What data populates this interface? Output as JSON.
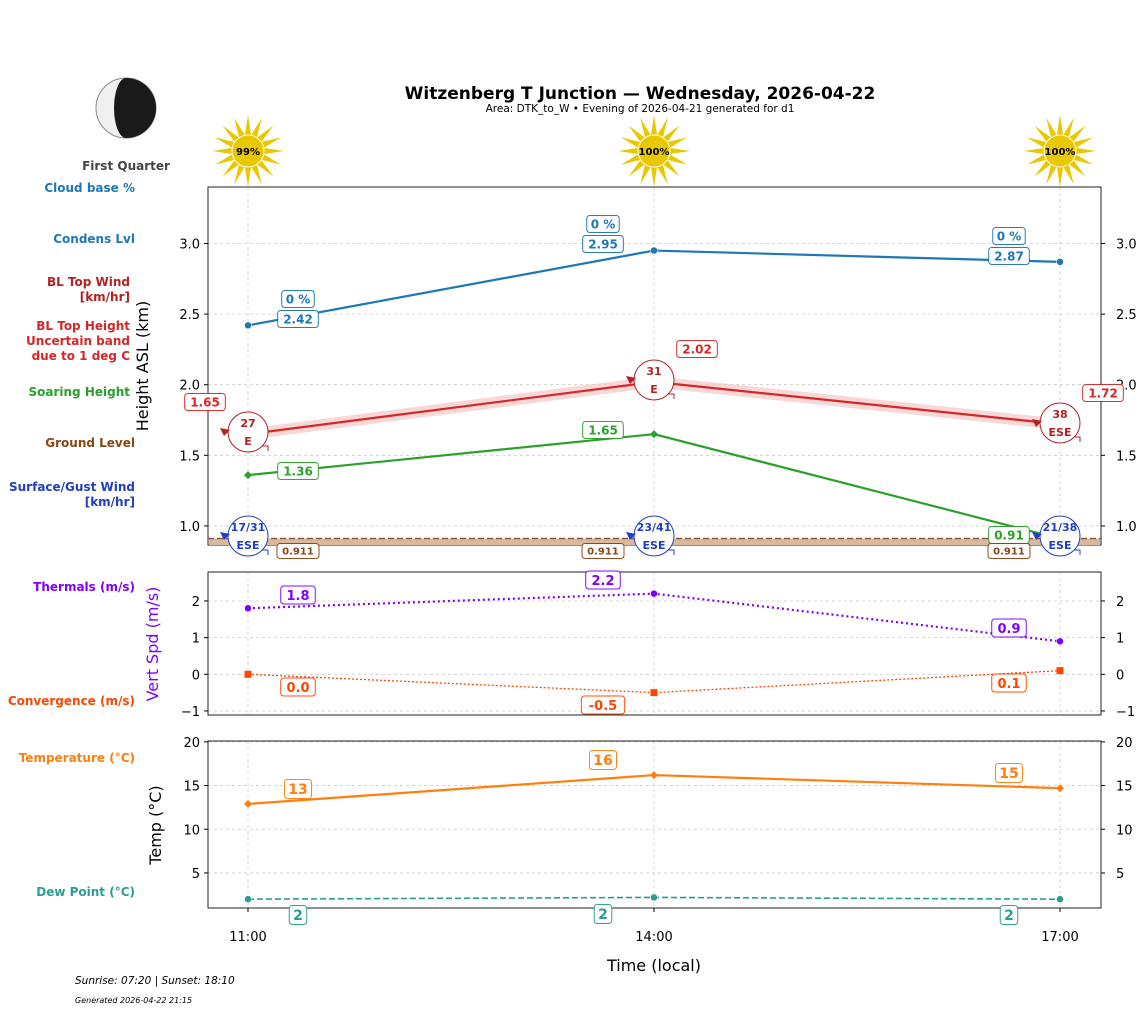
{
  "chart_data": {
    "type": "line",
    "title": "Witzenberg T Junction — Wednesday, 2026-04-22",
    "subtitle": "Area: DTK_to_W • Evening of 2026-04-21 generated for d1",
    "moon_phase": "First Quarter",
    "x": [
      "11:00",
      "14:00",
      "17:00"
    ],
    "xlabel": "Time (local)",
    "sun_percent": [
      "99%",
      "100%",
      "100%"
    ],
    "colors": {
      "condens": "#1f77b4",
      "bl_top": "#d62728",
      "bl_wind": "#b22222",
      "soaring": "#2ca02c",
      "ground": "#8b4513",
      "surface_wind": "#1f3fbf",
      "thermals": "#7f00ff",
      "convergence": "#ff4500",
      "temperature": "#ff7f0e",
      "dew": "#2a9d8f",
      "sun": "#e8c800"
    },
    "panels": [
      {
        "ylabel": "Height ASL (km)",
        "ylim": [
          0.865,
          3.4
        ],
        "yticks": [
          "1.0",
          "1.5",
          "2.0",
          "2.5",
          "3.0"
        ],
        "grid": true,
        "row_labels": [
          "Cloud base %",
          "Condens Lvl",
          "BL Top Wind [km/hr]",
          "BL Top Height Uncertain band due to 1 deg C",
          "Soaring Height",
          "Ground Level",
          "Surface/Gust Wind [km/hr]"
        ],
        "condens_lvl": {
          "values": [
            2.42,
            2.95,
            2.87
          ],
          "labels": [
            "2.42",
            "2.95",
            "2.87"
          ]
        },
        "cloud_base_pct": [
          "0 %",
          "0 %",
          "0 %"
        ],
        "bl_top_height": {
          "values": [
            1.65,
            2.02,
            1.72
          ],
          "labels": [
            "1.65",
            "2.02",
            "1.72"
          ],
          "uncertainty": 0.04
        },
        "bl_top_wind": {
          "speed": [
            "27",
            "31",
            "38"
          ],
          "dir": [
            "E",
            "E",
            "ESE"
          ]
        },
        "soaring_height": {
          "values": [
            1.36,
            1.65,
            0.91
          ],
          "labels": [
            "1.36",
            "1.65",
            "0.91"
          ]
        },
        "ground_level": {
          "values": [
            0.911,
            0.911,
            0.911
          ],
          "labels": [
            "0.911",
            "0.911",
            "0.911"
          ]
        },
        "surface_wind": {
          "speed": [
            "17/31",
            "23/41",
            "21/38"
          ],
          "dir": [
            "ESE",
            "ESE",
            "ESE"
          ]
        }
      },
      {
        "ylabel": "Vert Spd (m/s)",
        "ylim": [
          -1.11,
          2.79
        ],
        "yticks": [
          "−1",
          "0",
          "1",
          "2"
        ],
        "grid": true,
        "row_labels": [
          "Thermals (m/s)",
          "Convergence (m/s)"
        ],
        "thermals": {
          "values": [
            1.8,
            2.2,
            0.9
          ],
          "labels": [
            "1.8",
            "2.2",
            "0.9"
          ]
        },
        "convergence": {
          "values": [
            0.0,
            -0.5,
            0.1
          ],
          "labels": [
            "0.0",
            "-0.5",
            "0.1"
          ]
        }
      },
      {
        "ylabel": "Temp (°C)",
        "ylim": [
          0.99,
          20.1
        ],
        "yticks": [
          "5",
          "10",
          "15",
          "20"
        ],
        "grid": true,
        "row_labels": [
          "Temperature (°C)",
          "Dew Point (°C)"
        ],
        "temperature": {
          "values": [
            12.9,
            16.2,
            14.7
          ],
          "labels": [
            "13",
            "16",
            "15"
          ]
        },
        "dew_point": {
          "values": [
            2.0,
            2.2,
            2.0
          ],
          "labels": [
            "2",
            "2",
            "2"
          ]
        }
      }
    ]
  },
  "footer": {
    "sun_times": "Sunrise: 07:20 | Sunset: 18:10",
    "generated": "Generated 2026-04-22 21:15"
  }
}
